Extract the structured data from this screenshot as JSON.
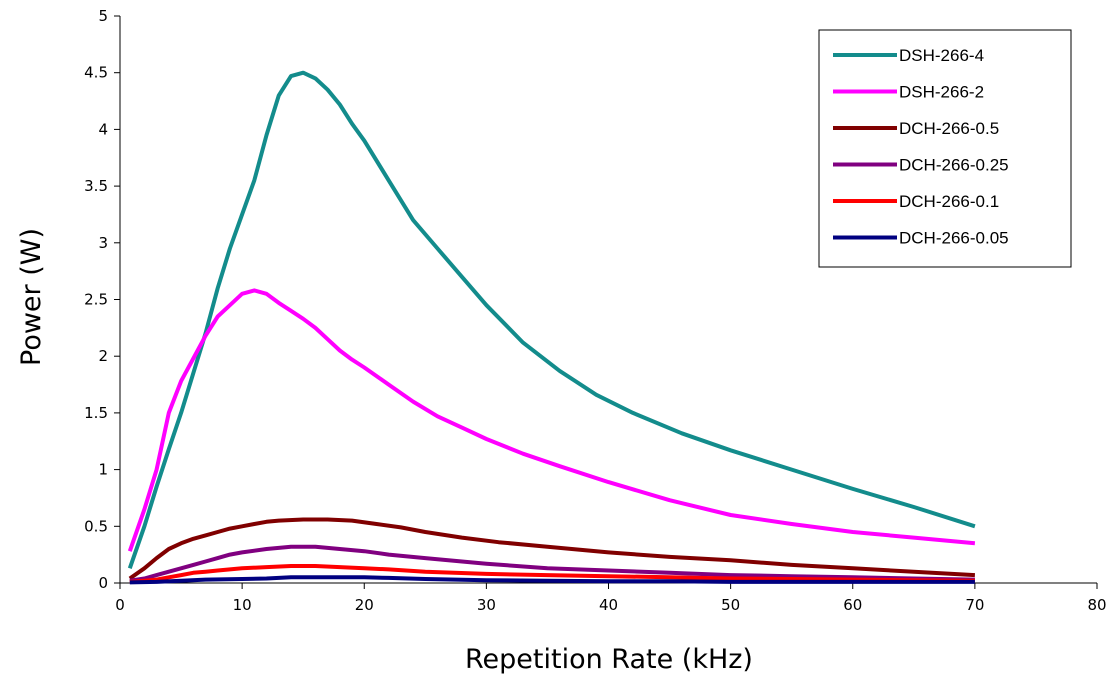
{
  "chart_data": {
    "type": "line",
    "title": "",
    "xlabel": "Repetition Rate (kHz)",
    "ylabel": "Power (W)",
    "xlim": [
      0,
      80
    ],
    "ylim": [
      0,
      5
    ],
    "x_ticks": [
      "0",
      "10",
      "20",
      "30",
      "40",
      "50",
      "60",
      "70",
      "80"
    ],
    "y_ticks": [
      "0",
      "0.5",
      "1",
      "1.5",
      "2",
      "2.5",
      "3",
      "3.5",
      "4",
      "4.5",
      "5"
    ],
    "grid": false,
    "legend_position": "top-right",
    "series": [
      {
        "name": "DSH-266-4",
        "color": "#138C8C",
        "points": [
          [
            0.8,
            0.13
          ],
          [
            2,
            0.5
          ],
          [
            3,
            0.85
          ],
          [
            4,
            1.18
          ],
          [
            5,
            1.5
          ],
          [
            6,
            1.85
          ],
          [
            7,
            2.2
          ],
          [
            8,
            2.6
          ],
          [
            9,
            2.95
          ],
          [
            10,
            3.25
          ],
          [
            11,
            3.55
          ],
          [
            12,
            3.95
          ],
          [
            13,
            4.3
          ],
          [
            14,
            4.47
          ],
          [
            15,
            4.5
          ],
          [
            16,
            4.45
          ],
          [
            17,
            4.35
          ],
          [
            18,
            4.22
          ],
          [
            19,
            4.05
          ],
          [
            20,
            3.9
          ],
          [
            22,
            3.55
          ],
          [
            24,
            3.2
          ],
          [
            26,
            2.95
          ],
          [
            28,
            2.7
          ],
          [
            30,
            2.45
          ],
          [
            33,
            2.12
          ],
          [
            36,
            1.87
          ],
          [
            39,
            1.66
          ],
          [
            42,
            1.5
          ],
          [
            46,
            1.32
          ],
          [
            50,
            1.17
          ],
          [
            55,
            1.0
          ],
          [
            60,
            0.83
          ],
          [
            65,
            0.67
          ],
          [
            70,
            0.5
          ]
        ]
      },
      {
        "name": "DSH-266-2",
        "color": "#FF00FF",
        "points": [
          [
            0.8,
            0.28
          ],
          [
            2,
            0.65
          ],
          [
            3,
            1.0
          ],
          [
            4,
            1.5
          ],
          [
            5,
            1.78
          ],
          [
            6,
            1.98
          ],
          [
            7,
            2.18
          ],
          [
            8,
            2.35
          ],
          [
            9,
            2.45
          ],
          [
            10,
            2.55
          ],
          [
            11,
            2.58
          ],
          [
            12,
            2.55
          ],
          [
            13,
            2.47
          ],
          [
            14,
            2.4
          ],
          [
            15,
            2.33
          ],
          [
            16,
            2.25
          ],
          [
            17,
            2.15
          ],
          [
            18,
            2.05
          ],
          [
            19,
            1.97
          ],
          [
            20,
            1.9
          ],
          [
            22,
            1.75
          ],
          [
            24,
            1.6
          ],
          [
            26,
            1.47
          ],
          [
            28,
            1.37
          ],
          [
            30,
            1.27
          ],
          [
            33,
            1.14
          ],
          [
            36,
            1.03
          ],
          [
            40,
            0.89
          ],
          [
            45,
            0.73
          ],
          [
            50,
            0.6
          ],
          [
            55,
            0.52
          ],
          [
            60,
            0.45
          ],
          [
            65,
            0.4
          ],
          [
            70,
            0.35
          ]
        ]
      },
      {
        "name": "DCH-266-0.5",
        "color": "#800000",
        "points": [
          [
            0.8,
            0.04
          ],
          [
            2,
            0.13
          ],
          [
            3,
            0.22
          ],
          [
            4,
            0.3
          ],
          [
            5,
            0.35
          ],
          [
            6,
            0.39
          ],
          [
            7,
            0.42
          ],
          [
            8,
            0.45
          ],
          [
            9,
            0.48
          ],
          [
            10,
            0.5
          ],
          [
            11,
            0.52
          ],
          [
            12,
            0.54
          ],
          [
            13,
            0.55
          ],
          [
            15,
            0.56
          ],
          [
            17,
            0.56
          ],
          [
            19,
            0.55
          ],
          [
            21,
            0.52
          ],
          [
            23,
            0.49
          ],
          [
            25,
            0.45
          ],
          [
            28,
            0.4
          ],
          [
            31,
            0.36
          ],
          [
            35,
            0.32
          ],
          [
            40,
            0.27
          ],
          [
            45,
            0.23
          ],
          [
            50,
            0.2
          ],
          [
            55,
            0.16
          ],
          [
            60,
            0.13
          ],
          [
            65,
            0.1
          ],
          [
            70,
            0.07
          ]
        ]
      },
      {
        "name": "DCH-266-0.25",
        "color": "#800080",
        "points": [
          [
            0.8,
            0.02
          ],
          [
            2,
            0.04
          ],
          [
            3,
            0.07
          ],
          [
            4,
            0.1
          ],
          [
            5,
            0.13
          ],
          [
            6,
            0.16
          ],
          [
            7,
            0.19
          ],
          [
            8,
            0.22
          ],
          [
            9,
            0.25
          ],
          [
            10,
            0.27
          ],
          [
            12,
            0.3
          ],
          [
            14,
            0.32
          ],
          [
            16,
            0.32
          ],
          [
            18,
            0.3
          ],
          [
            20,
            0.28
          ],
          [
            22,
            0.25
          ],
          [
            25,
            0.22
          ],
          [
            30,
            0.17
          ],
          [
            35,
            0.13
          ],
          [
            40,
            0.11
          ],
          [
            45,
            0.09
          ],
          [
            50,
            0.07
          ],
          [
            55,
            0.06
          ],
          [
            60,
            0.05
          ],
          [
            65,
            0.04
          ],
          [
            70,
            0.03
          ]
        ]
      },
      {
        "name": "DCH-266-0.1",
        "color": "#FF0000",
        "points": [
          [
            0.8,
            0.01
          ],
          [
            2,
            0.02
          ],
          [
            3,
            0.03
          ],
          [
            4,
            0.05
          ],
          [
            5,
            0.07
          ],
          [
            6,
            0.09
          ],
          [
            7,
            0.1
          ],
          [
            8,
            0.11
          ],
          [
            10,
            0.13
          ],
          [
            12,
            0.14
          ],
          [
            14,
            0.15
          ],
          [
            16,
            0.15
          ],
          [
            18,
            0.14
          ],
          [
            20,
            0.13
          ],
          [
            22,
            0.12
          ],
          [
            25,
            0.1
          ],
          [
            30,
            0.08
          ],
          [
            35,
            0.07
          ],
          [
            40,
            0.06
          ],
          [
            45,
            0.05
          ],
          [
            50,
            0.04
          ],
          [
            55,
            0.035
          ],
          [
            60,
            0.03
          ],
          [
            65,
            0.025
          ],
          [
            70,
            0.02
          ]
        ]
      },
      {
        "name": "DCH-266-0.05",
        "color": "#000080",
        "points": [
          [
            0.8,
            0.005
          ],
          [
            3,
            0.01
          ],
          [
            5,
            0.02
          ],
          [
            7,
            0.03
          ],
          [
            10,
            0.035
          ],
          [
            12,
            0.04
          ],
          [
            14,
            0.05
          ],
          [
            16,
            0.05
          ],
          [
            18,
            0.05
          ],
          [
            20,
            0.05
          ],
          [
            22,
            0.045
          ],
          [
            25,
            0.035
          ],
          [
            30,
            0.025
          ],
          [
            35,
            0.02
          ],
          [
            40,
            0.015
          ],
          [
            45,
            0.015
          ],
          [
            50,
            0.01
          ],
          [
            55,
            0.01
          ],
          [
            60,
            0.01
          ],
          [
            65,
            0.01
          ],
          [
            70,
            0.01
          ]
        ]
      }
    ]
  }
}
